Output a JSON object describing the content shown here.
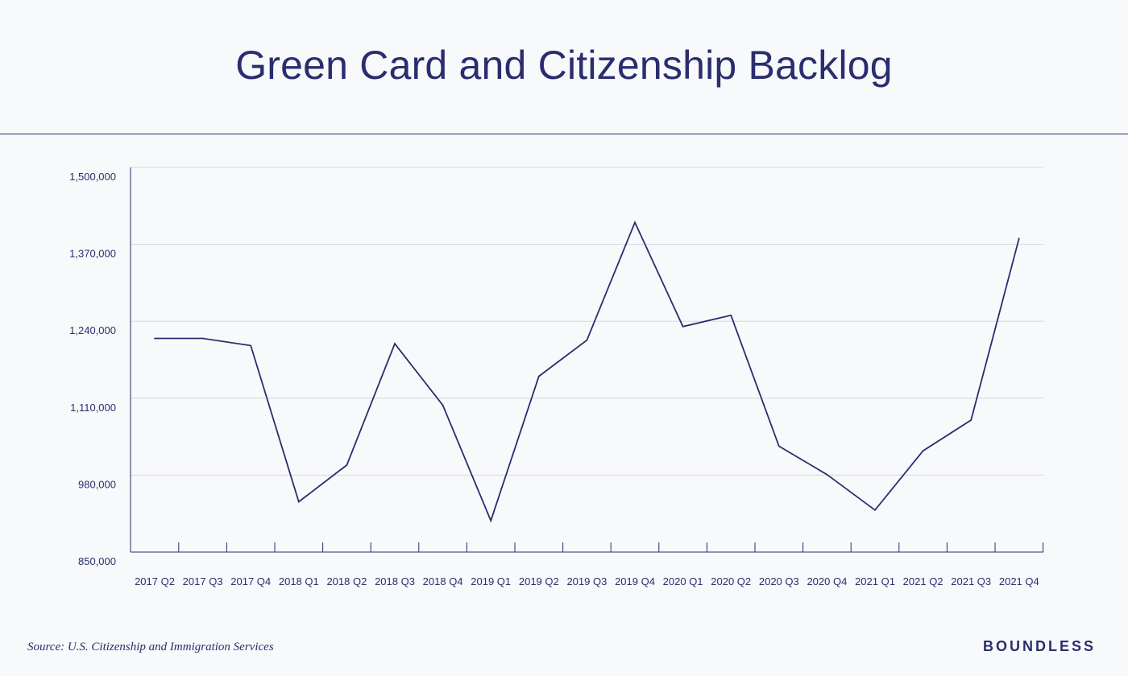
{
  "title": "Green Card and Citizenship Backlog",
  "source": "Source: U.S. Citizenship and Immigration Services",
  "brand": "BOUNDLESS",
  "colors": {
    "line": "#2a2d6e",
    "grid": "#d4d8e6",
    "background": "#f8f9fb",
    "text": "#2a2d6e"
  },
  "chart_data": {
    "type": "line",
    "title": "Green Card and Citizenship Backlog",
    "xlabel": "",
    "ylabel": "",
    "ylim": [
      850000,
      1500000
    ],
    "yticks": [
      850000,
      980000,
      1110000,
      1240000,
      1370000,
      1500000
    ],
    "ytick_labels": [
      "850,000",
      "980,000",
      "1,110,000",
      "1,240,000",
      "1,370,000",
      "1,500,000"
    ],
    "grid": true,
    "categories": [
      "2017 Q2",
      "2017 Q3",
      "2017 Q4",
      "2018 Q1",
      "2018 Q2",
      "2018 Q3",
      "2018 Q4",
      "2019 Q1",
      "2019 Q2",
      "2019 Q3",
      "2019 Q4",
      "2020 Q1",
      "2020 Q2",
      "2020 Q3",
      "2020 Q4",
      "2021 Q1",
      "2021 Q2",
      "2021 Q3",
      "2021 Q4"
    ],
    "series": [
      {
        "values": [
          1211000,
          1211000,
          1199000,
          935000,
          997000,
          1202000,
          1098000,
          903000,
          1147000,
          1208000,
          1407000,
          1231000,
          1250000,
          1029000,
          981000,
          921000,
          1021000,
          1073000,
          1380000
        ]
      }
    ]
  }
}
